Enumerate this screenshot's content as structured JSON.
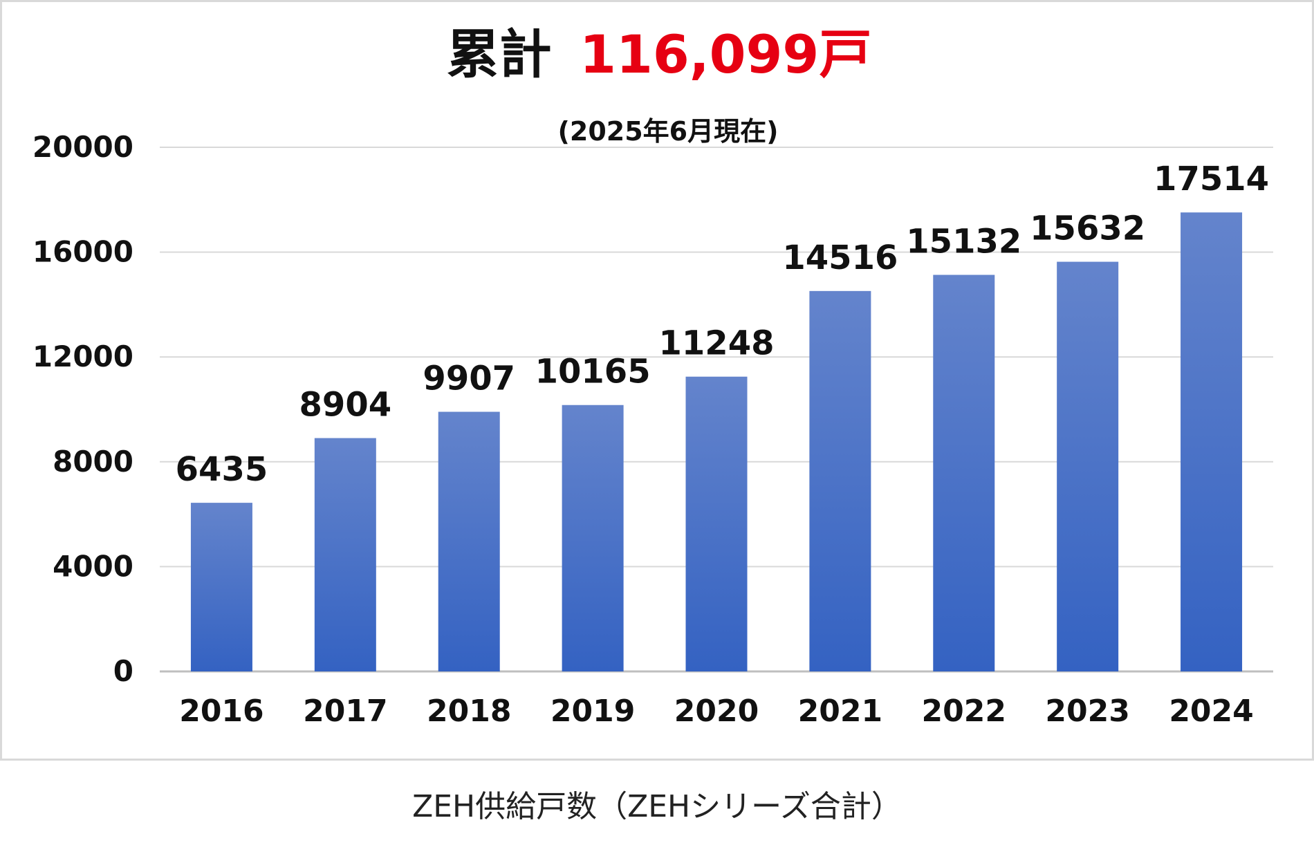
{
  "chart_data": {
    "type": "bar",
    "title_prefix": "累計",
    "title_value": "116,099戸",
    "subtitle": "(2025年6月現在)",
    "categories": [
      "2016",
      "2017",
      "2018",
      "2019",
      "2020",
      "2021",
      "2022",
      "2023",
      "2024"
    ],
    "values": [
      6435,
      8904,
      9907,
      10165,
      11248,
      14516,
      15132,
      15632,
      17514
    ],
    "data_labels": [
      "6435",
      "8904",
      "9907",
      "10165",
      "11248",
      "14516",
      "15132",
      "15632",
      "17514"
    ],
    "y_ticks": [
      "0",
      "4000",
      "8000",
      "12000",
      "16000",
      "20000"
    ],
    "ylim": [
      0,
      20000
    ],
    "grid": true,
    "legend": "none",
    "bar_color_top": "#6484cc",
    "bar_color_bottom": "#3462c2",
    "title_accent_color": "#e60012"
  },
  "caption": "ZEH供給戸数（ZEHシリーズ合計）"
}
